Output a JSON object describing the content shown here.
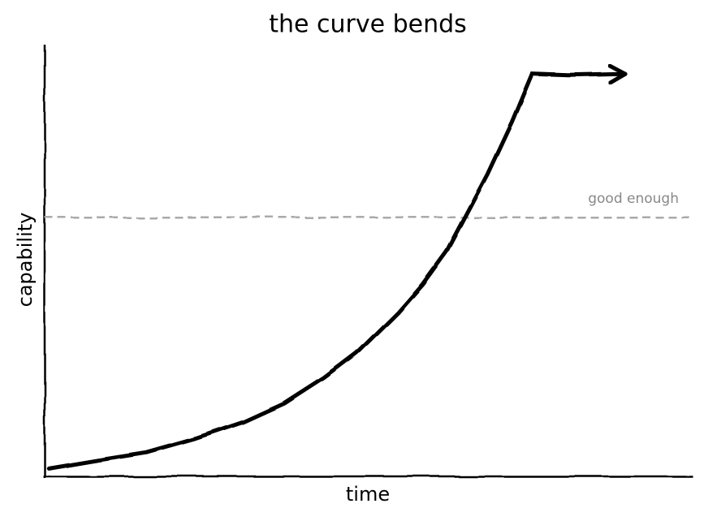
{
  "chart_data": {
    "type": "line",
    "title": "the curve bends",
    "xlabel": "time",
    "ylabel": "capability",
    "xlim": [
      0,
      100
    ],
    "ylim": [
      0,
      100
    ],
    "x": [
      0.6,
      8.1,
      15.7,
      23.2,
      30.7,
      37.0,
      43.2,
      48.2,
      54.5,
      58.3,
      62.0,
      65.2,
      68.3,
      72.1,
      75.2,
      80.8,
      89.6
    ],
    "series": [
      {
        "name": "capability",
        "color": "#000000",
        "values": [
          1.9,
          3.8,
          5.6,
          8.8,
          12.6,
          16.9,
          22.9,
          28.6,
          38.0,
          44.5,
          52.1,
          61.1,
          69.9,
          82.1,
          93.2,
          92.9,
          93.2
        ]
      }
    ],
    "threshold": {
      "value": 60,
      "label": "good enough",
      "color": "#aaaaaa"
    }
  }
}
